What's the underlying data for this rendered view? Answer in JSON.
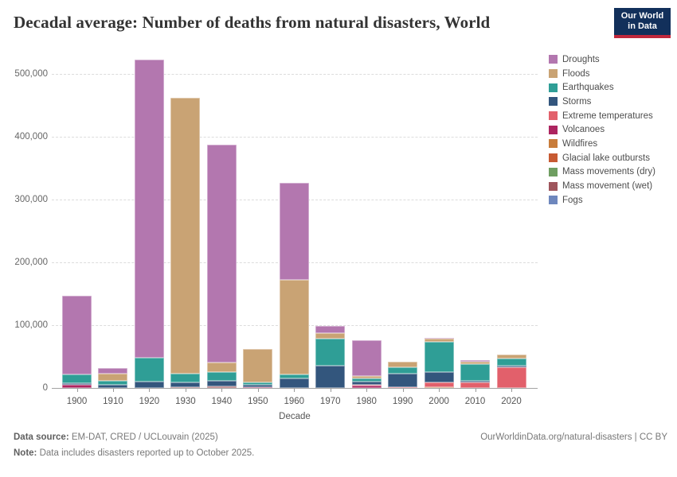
{
  "header": {
    "title": "Decadal average: Number of deaths from natural disasters, World",
    "logo": {
      "line1": "Our World",
      "line2": "in Data",
      "bg_color": "#12305b",
      "stripe_color": "#c0283c"
    }
  },
  "chart_data": {
    "type": "bar",
    "stacked": true,
    "title": "Decadal average: Number of deaths from natural disasters, World",
    "xlabel": "Decade",
    "ylabel": "",
    "ylim": [
      0,
      540000
    ],
    "grid": "horizontal-dashed",
    "legend_position": "right",
    "y_ticks": [
      {
        "value": 0,
        "label": "0"
      },
      {
        "value": 100000,
        "label": "100,000"
      },
      {
        "value": 200000,
        "label": "200,000"
      },
      {
        "value": 300000,
        "label": "300,000"
      },
      {
        "value": 400000,
        "label": "400,000"
      },
      {
        "value": 500000,
        "label": "500,000"
      }
    ],
    "categories": [
      "1900",
      "1910",
      "1920",
      "1930",
      "1940",
      "1950",
      "1960",
      "1970",
      "1980",
      "1990",
      "2000",
      "2010",
      "2020"
    ],
    "stack_order_bottom_to_top": [
      "Fogs",
      "Mass movement (wet)",
      "Mass movements (dry)",
      "Glacial lake outbursts",
      "Wildfires",
      "Volcanoes",
      "Extreme temperatures",
      "Storms",
      "Earthquakes",
      "Floods",
      "Droughts"
    ],
    "series": [
      {
        "name": "Droughts",
        "color": "#b377af",
        "values": [
          126000,
          9800,
          474500,
          0,
          346000,
          0,
          155000,
          12000,
          57000,
          0,
          1000,
          2500,
          0
        ]
      },
      {
        "name": "Floods",
        "color": "#c9a374",
        "values": [
          0,
          11400,
          0,
          439000,
          16000,
          53400,
          151000,
          8500,
          4100,
          8900,
          4800,
          4200,
          6300
        ]
      },
      {
        "name": "Earthquakes",
        "color": "#2f9e96",
        "values": [
          14000,
          5500,
          38000,
          14500,
          13500,
          3600,
          5100,
          42300,
          5100,
          10100,
          47700,
          26700,
          11800
        ]
      },
      {
        "name": "Storms",
        "color": "#33567d",
        "values": [
          2000,
          5300,
          10500,
          7500,
          9500,
          3500,
          15800,
          36000,
          5000,
          21700,
          16900,
          3000,
          3000
        ]
      },
      {
        "name": "Extreme temperatures",
        "color": "#e2606b",
        "values": [
          0,
          0,
          0,
          0,
          0,
          0,
          0,
          0,
          1000,
          1700,
          8200,
          8400,
          32500
        ]
      },
      {
        "name": "Volcanoes",
        "color": "#ad2560",
        "values": [
          5000,
          0,
          0,
          0,
          0,
          1500,
          0,
          0,
          3500,
          0,
          0,
          0,
          0
        ]
      },
      {
        "name": "Wildfires",
        "color": "#c87c3b",
        "values": [
          0,
          0,
          0,
          0,
          0,
          0,
          0,
          0,
          0,
          0,
          800,
          0,
          0
        ]
      },
      {
        "name": "Glacial lake outbursts",
        "color": "#c75a32",
        "values": [
          0,
          0,
          0,
          0,
          0,
          0,
          0,
          0,
          0,
          0,
          0,
          0,
          0
        ]
      },
      {
        "name": "Mass movements (dry)",
        "color": "#6f9e61",
        "values": [
          0,
          0,
          0,
          0,
          0,
          0,
          0,
          0,
          0,
          0,
          0,
          0,
          0
        ]
      },
      {
        "name": "Mass movement (wet)",
        "color": "#9f555c",
        "values": [
          0,
          0,
          0,
          1000,
          2000,
          0,
          0,
          0,
          0,
          0,
          0,
          0,
          0
        ]
      },
      {
        "name": "Fogs",
        "color": "#6e87bd",
        "values": [
          0,
          0,
          0,
          0,
          0,
          0,
          0,
          0,
          0,
          0,
          0,
          0,
          0
        ]
      }
    ]
  },
  "footer": {
    "source_label": "Data source:",
    "source_text": " EM-DAT, CRED / UCLouvain (2025)",
    "note_label": "Note:",
    "note_text": " Data includes disasters reported up to October 2025.",
    "rights": "OurWorldinData.org/natural-disasters | CC BY"
  }
}
